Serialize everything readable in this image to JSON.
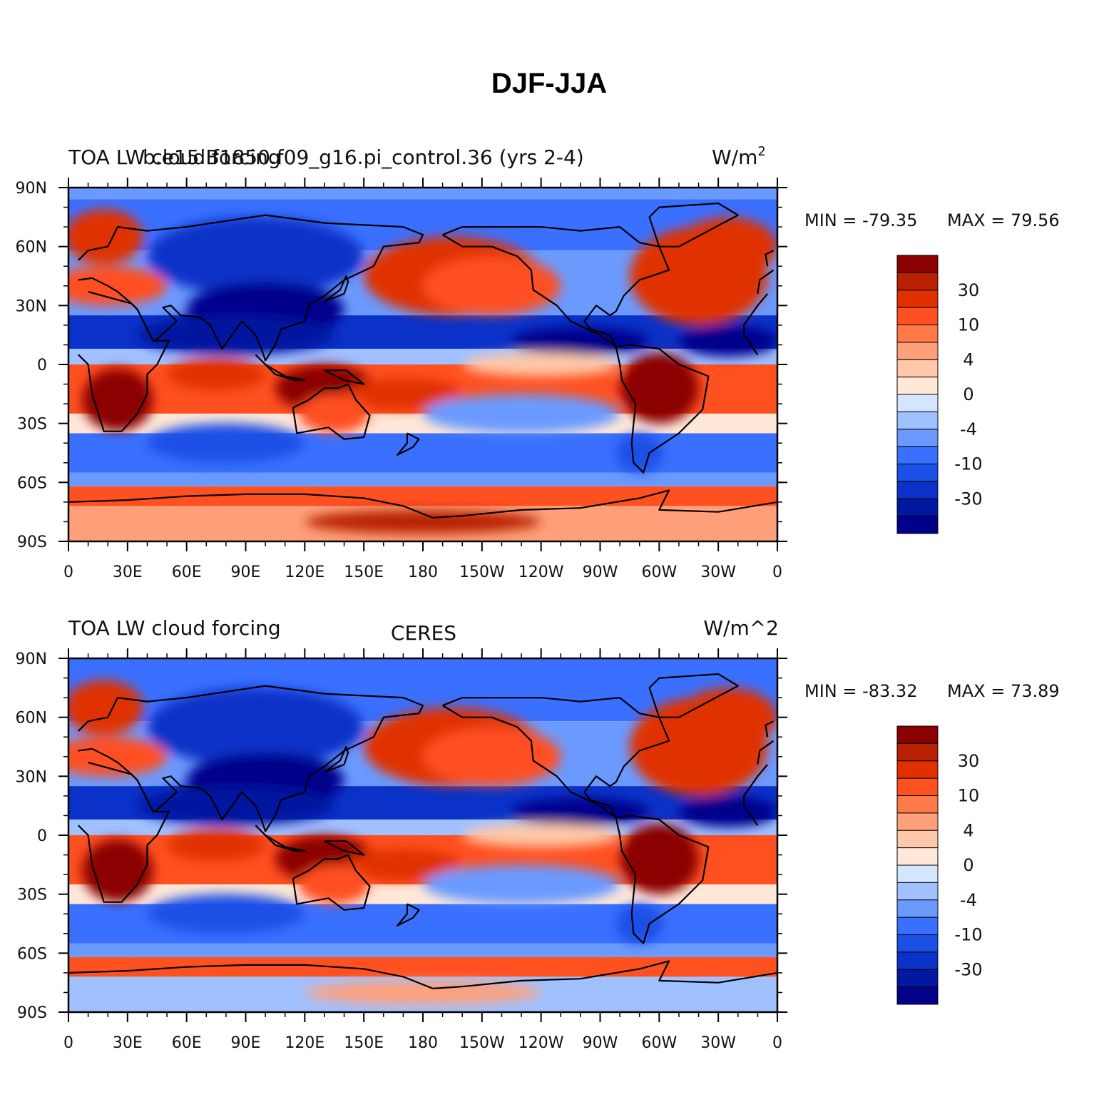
{
  "figure": {
    "title": "DJF-JJA"
  },
  "colors": {
    "levels": [
      "#00008b",
      "#0019a0",
      "#0a32c8",
      "#1a50e6",
      "#3a70ff",
      "#6b9aff",
      "#a0c0ff",
      "#d4e6ff",
      "#ffe8d8",
      "#ffc8a8",
      "#ffa07a",
      "#ff7a48",
      "#ff5020",
      "#e03000",
      "#b82000",
      "#8b0000"
    ],
    "coast": "#000000"
  },
  "panels": [
    {
      "left_title": "TOA LW cloud forcing",
      "center_title": "b.e15.B1850.f09_g16.pi_control.36 (yrs 2-4)",
      "right_title": "W/m",
      "right_title_sup": "2",
      "min_label": "MIN = -79.35",
      "max_label": "MAX =  79.56"
    },
    {
      "left_title": "TOA LW cloud forcing",
      "center_title": "CERES",
      "right_title": "W/m^2",
      "right_title_sup": "",
      "min_label": "MIN = -83.32",
      "max_label": "MAX =  73.89"
    }
  ],
  "chart_data": {
    "type": "heatmap",
    "x_ticks": [
      "0",
      "30E",
      "60E",
      "90E",
      "120E",
      "150E",
      "180",
      "150W",
      "120W",
      "90W",
      "60W",
      "30W",
      "0"
    ],
    "y_ticks": [
      "90N",
      "60N",
      "30N",
      "0",
      "30S",
      "60S",
      "90S"
    ],
    "colorbar_labels": [
      "30",
      "10",
      "4",
      "0",
      "-4",
      "-10",
      "-30"
    ],
    "lon_range": [
      0,
      360
    ],
    "lat_range": [
      -90,
      90
    ]
  }
}
